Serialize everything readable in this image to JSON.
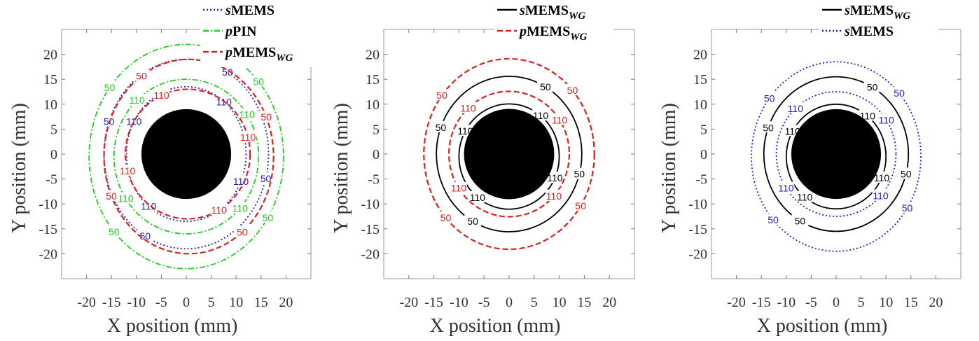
{
  "chart_data": [
    {
      "type": "line",
      "panel": "left",
      "xlabel": "X position (mm)",
      "ylabel": "Y position (mm)",
      "xticks": [
        "-20",
        "-15",
        "-10",
        "-5",
        "0",
        "5",
        "10",
        "15",
        "20"
      ],
      "yticks": [
        "20",
        "15",
        "10",
        "5",
        "0",
        "-5",
        "-10",
        "-15",
        "-20"
      ],
      "xlim": [
        -25,
        25
      ],
      "ylim": [
        -25,
        25
      ],
      "legend_position": "top-right",
      "legend": [
        {
          "name_pre": "s",
          "name_main": "MEMS",
          "name_sub": "",
          "color": "#1f1fcc",
          "dash": "2,3"
        },
        {
          "name_pre": "p",
          "name_main": "PIN",
          "name_sub": "",
          "color": "#22cc22",
          "dash": "8,3,2,3"
        },
        {
          "name_pre": "p",
          "name_main": "MEMS",
          "name_sub": "WG",
          "color": "#e02020",
          "dash": "8,4"
        }
      ],
      "obstacle": {
        "cx": 0,
        "cy": 0,
        "r": 9
      },
      "series": [
        {
          "color": "#1f1fcc",
          "dash": "2,3",
          "contours": [
            {
              "level": "50",
              "rx": 16.5,
              "ry": 19.0,
              "cx": 0,
              "cy": 0
            },
            {
              "level": "110",
              "rx": 12.0,
              "ry": 13.5,
              "cx": 0,
              "cy": 0
            }
          ]
        },
        {
          "color": "#22cc22",
          "dash": "8,3,2,3",
          "contours": [
            {
              "level": "50",
              "rx": 19.5,
              "ry": 22.5,
              "cx": 0,
              "cy": -0.5
            },
            {
              "level": "110",
              "rx": 14.5,
              "ry": 15.5,
              "cx": 0,
              "cy": -0.5
            }
          ]
        },
        {
          "color": "#e02020",
          "dash": "8,4",
          "contours": [
            {
              "level": "50",
              "rx": 17.0,
              "ry": 19.5,
              "cx": 0.5,
              "cy": -0.5
            },
            {
              "level": "110",
              "rx": 12.5,
              "ry": 13.0,
              "cx": 0.3,
              "cy": 0
            }
          ]
        }
      ]
    },
    {
      "type": "line",
      "panel": "middle",
      "xlabel": "X position (mm)",
      "ylabel": "Y position (mm)",
      "xticks": [
        "-20",
        "-15",
        "-10",
        "-5",
        "0",
        "5",
        "10",
        "15",
        "20"
      ],
      "yticks": [
        "20",
        "15",
        "10",
        "5",
        "0",
        "-5",
        "-10",
        "-15",
        "-20"
      ],
      "xlim": [
        -25,
        25
      ],
      "ylim": [
        -25,
        25
      ],
      "legend_position": "top-right",
      "legend": [
        {
          "name_pre": "s",
          "name_main": "MEMS",
          "name_sub": "WG",
          "color": "#000000",
          "dash": ""
        },
        {
          "name_pre": "p",
          "name_main": "MEMS",
          "name_sub": "WG",
          "color": "#e02020",
          "dash": "8,4"
        }
      ],
      "obstacle": {
        "cx": 0,
        "cy": 0,
        "r": 9
      },
      "series": [
        {
          "color": "#000000",
          "dash": "",
          "contours": [
            {
              "level": "50",
              "rx": 14.5,
              "ry": 15.5,
              "cx": 0,
              "cy": 0
            },
            {
              "level": "110",
              "rx": 10.0,
              "ry": 10.5,
              "cx": 0,
              "cy": -0.5
            }
          ]
        },
        {
          "color": "#e02020",
          "dash": "8,4",
          "contours": [
            {
              "level": "50",
              "rx": 17.0,
              "ry": 19.0,
              "cx": 0,
              "cy": 0
            },
            {
              "level": "110",
              "rx": 12.0,
              "ry": 12.5,
              "cx": 0,
              "cy": 0
            }
          ]
        }
      ]
    },
    {
      "type": "line",
      "panel": "right",
      "xlabel": "X position (mm)",
      "ylabel": "Y position (mm)",
      "xticks": [
        "-20",
        "-15",
        "-10",
        "-5",
        "0",
        "5",
        "10",
        "15",
        "20"
      ],
      "yticks": [
        "20",
        "15",
        "10",
        "5",
        "0",
        "-5",
        "-10",
        "-15",
        "-20"
      ],
      "xlim": [
        -25,
        25
      ],
      "ylim": [
        -25,
        25
      ],
      "legend_position": "top-right",
      "legend": [
        {
          "name_pre": "s",
          "name_main": "MEMS",
          "name_sub": "WG",
          "color": "#000000",
          "dash": ""
        },
        {
          "name_pre": "s",
          "name_main": "MEMS",
          "name_sub": "",
          "color": "#1f1fcc",
          "dash": "2,3"
        }
      ],
      "obstacle": {
        "cx": 0,
        "cy": 0,
        "r": 9
      },
      "series": [
        {
          "color": "#000000",
          "dash": "",
          "contours": [
            {
              "level": "50",
              "rx": 14.5,
              "ry": 15.5,
              "cx": 0,
              "cy": 0
            },
            {
              "level": "110",
              "rx": 10.0,
              "ry": 10.5,
              "cx": 0,
              "cy": -0.5
            }
          ]
        },
        {
          "color": "#1f1fcc",
          "dash": "2,3",
          "contours": [
            {
              "level": "50",
              "rx": 17.0,
              "ry": 19.0,
              "cx": 0,
              "cy": -0.5
            },
            {
              "level": "110",
              "rx": 12.0,
              "ry": 12.5,
              "cx": 0,
              "cy": 0
            }
          ]
        }
      ]
    }
  ]
}
